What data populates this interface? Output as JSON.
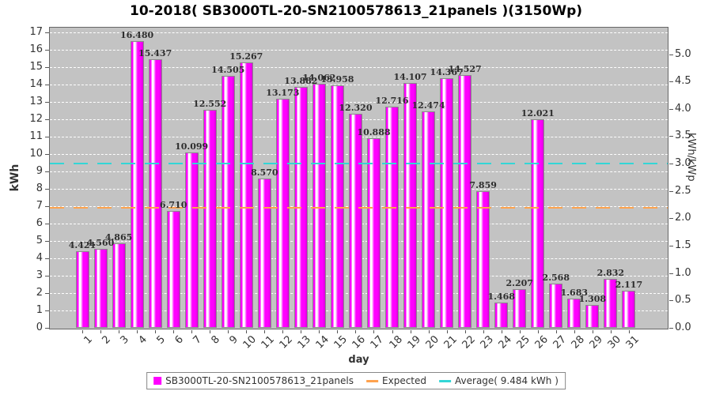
{
  "title": "10-2018( SB3000TL-20-SN2100578613_21panels )(3150Wp)",
  "axes": {
    "left_label": "kWh",
    "right_label": "kWh/kWp",
    "x_label": "day",
    "left_ticks": [
      "0",
      "1",
      "2",
      "3",
      "4",
      "5",
      "6",
      "7",
      "8",
      "9",
      "10",
      "11",
      "12",
      "13",
      "14",
      "15",
      "16",
      "17"
    ],
    "right_ticks": [
      "0.0",
      "0.5",
      "1.0",
      "1.5",
      "2.0",
      "2.5",
      "3.0",
      "3.5",
      "4.0",
      "4.5",
      "5.0"
    ]
  },
  "legend": {
    "series_label": "SB3000TL-20-SN2100578613_21panels",
    "expected_label": "Expected",
    "average_label": "Average( 9.484 kWh )"
  },
  "colors": {
    "bar": "#FF00FF",
    "bar_highlight": "#FFFFFF",
    "bar_border": "#8A8A8A",
    "plot_bg": "#C3C3C3",
    "grid": "#FFFFFF",
    "average_line": "#33D6D6",
    "expected_line": "#FFA24D",
    "value_label": "#2E2E2E",
    "axis_text": "#333333"
  },
  "chart_data": {
    "type": "bar",
    "title": "10-2018( SB3000TL-20-SN2100578613_21panels )(3150Wp)",
    "xlabel": "day",
    "ylabel": "kWh",
    "y2label": "kWh/kWp",
    "ylim": [
      0,
      17
    ],
    "y2lim": [
      0,
      5.4
    ],
    "kwp": 3.15,
    "grid": "horizontal-dashed-every-1-kwh",
    "legend_position": "bottom",
    "categories": [
      1,
      2,
      3,
      4,
      5,
      6,
      7,
      8,
      9,
      10,
      11,
      12,
      13,
      14,
      15,
      16,
      17,
      18,
      19,
      20,
      21,
      22,
      23,
      24,
      25,
      26,
      27,
      28,
      29,
      30,
      31
    ],
    "series": [
      {
        "name": "SB3000TL-20-SN2100578613_21panels",
        "values": [
          4.421,
          4.56,
          4.865,
          16.48,
          15.437,
          6.71,
          10.099,
          12.552,
          14.505,
          15.267,
          8.57,
          13.173,
          13.882,
          14.062,
          13.958,
          12.32,
          10.888,
          12.716,
          14.107,
          12.474,
          14.367,
          14.527,
          7.859,
          1.468,
          2.207,
          12.021,
          2.568,
          1.683,
          1.308,
          2.832,
          2.117
        ]
      }
    ],
    "average_kwh": 9.484,
    "expected_kwh": 6.95
  }
}
